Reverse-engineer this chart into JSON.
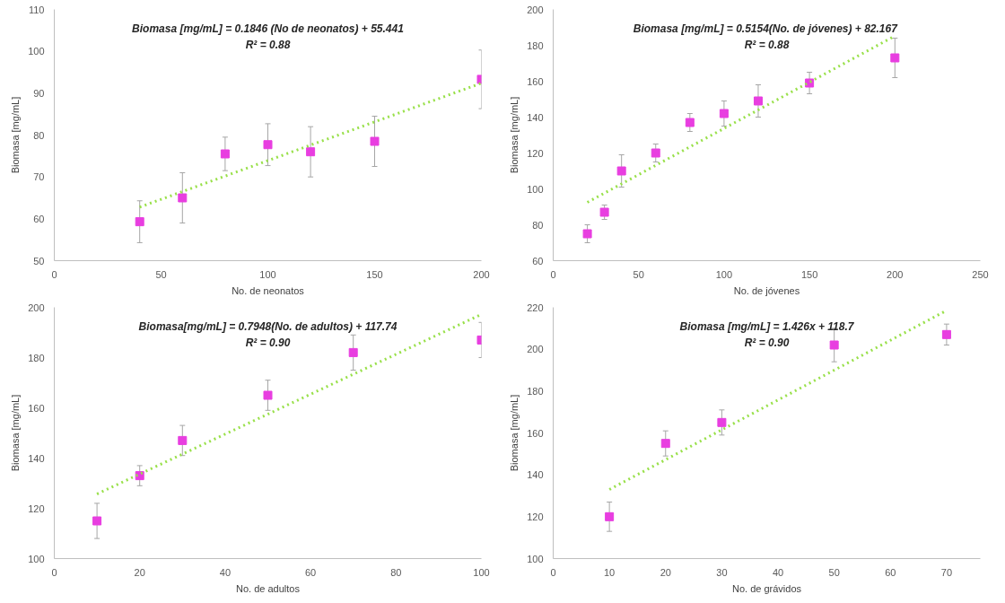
{
  "chart_data": [
    {
      "type": "scatter",
      "xlabel": "No. de neonatos",
      "ylabel": "Biomasa [mg/mL]",
      "xlim": [
        0,
        200
      ],
      "ylim": [
        50,
        110
      ],
      "xticks": [
        0,
        50,
        100,
        150,
        200
      ],
      "yticks": [
        50,
        60,
        70,
        80,
        90,
        100,
        110
      ],
      "grid": false,
      "annotations": [
        "Biomasa [mg/mL] = 0.1846 (No de neonatos) + 55.441",
        "R² = 0.88"
      ],
      "x": [
        40,
        60,
        80,
        100,
        120,
        150,
        200
      ],
      "series": [
        {
          "marker": "square",
          "color": "#e83ee0",
          "values": [
            59.3,
            65,
            75.5,
            77.7,
            76,
            78.5,
            93.3
          ],
          "errors": [
            5,
            6,
            4,
            5,
            6,
            6,
            7
          ]
        },
        {
          "type": "line",
          "line_style": "dotted",
          "color": "#99e04a",
          "x": [
            40,
            200
          ],
          "values": [
            62.8,
            92.4
          ]
        }
      ]
    },
    {
      "type": "scatter",
      "xlabel": "No. de jóvenes",
      "ylabel": "Biomasa [mg/mL]",
      "xlim": [
        0,
        250
      ],
      "ylim": [
        60,
        200
      ],
      "xticks": [
        0,
        50,
        100,
        150,
        200,
        250
      ],
      "yticks": [
        60,
        80,
        100,
        120,
        140,
        160,
        180,
        200
      ],
      "grid": false,
      "annotations": [
        "Biomasa [mg/mL]  = 0.5154(No. de jóvenes) + 82.167",
        "R² = 0.88"
      ],
      "x": [
        20,
        30,
        40,
        60,
        80,
        100,
        120,
        150,
        200
      ],
      "series": [
        {
          "marker": "square",
          "color": "#e83ee0",
          "values": [
            75,
            87,
            110,
            120,
            137,
            142,
            149,
            159,
            173
          ],
          "errors": [
            5,
            4,
            9,
            5,
            5,
            7,
            9,
            6,
            11
          ]
        },
        {
          "type": "line",
          "line_style": "dotted",
          "color": "#99e04a",
          "x": [
            20,
            200
          ],
          "values": [
            92.5,
            185.2
          ]
        }
      ]
    },
    {
      "type": "scatter",
      "xlabel": "No. de adultos",
      "ylabel": "Biomasa [mg/mL]",
      "xlim": [
        0,
        100
      ],
      "ylim": [
        100,
        200
      ],
      "xticks": [
        0,
        20,
        40,
        60,
        80,
        100
      ],
      "yticks": [
        100,
        120,
        140,
        160,
        180,
        200
      ],
      "grid": false,
      "annotations": [
        "Biomasa[mg/mL] = 0.7948(No. de adultos) + 117.74",
        "R² = 0.90"
      ],
      "x": [
        10,
        20,
        30,
        50,
        70,
        100
      ],
      "series": [
        {
          "marker": "square",
          "color": "#e83ee0",
          "values": [
            115,
            133,
            147,
            165,
            182,
            187
          ],
          "errors": [
            7,
            4,
            6,
            6,
            7,
            7
          ]
        },
        {
          "type": "line",
          "line_style": "dotted",
          "color": "#99e04a",
          "x": [
            10,
            100
          ],
          "values": [
            125.7,
            197.2
          ]
        }
      ]
    },
    {
      "type": "scatter",
      "xlabel": "No. de grávidos",
      "ylabel": "Biomasa [mg/mL]",
      "xlim": [
        0,
        76
      ],
      "ylim": [
        100,
        220
      ],
      "xticks": [
        0,
        10,
        20,
        30,
        40,
        50,
        60,
        70
      ],
      "yticks": [
        100,
        120,
        140,
        160,
        180,
        200,
        220
      ],
      "grid": false,
      "annotations": [
        "Biomasa [mg/mL] = 1.426x + 118.7",
        "R² = 0.90"
      ],
      "x": [
        10,
        20,
        30,
        50,
        70
      ],
      "series": [
        {
          "marker": "square",
          "color": "#e83ee0",
          "values": [
            120,
            155,
            165,
            202,
            207
          ],
          "errors": [
            7,
            6,
            6,
            8,
            5
          ]
        },
        {
          "type": "line",
          "line_style": "dotted",
          "color": "#99e04a",
          "x": [
            10,
            70
          ],
          "values": [
            133,
            218.5
          ]
        }
      ]
    }
  ]
}
